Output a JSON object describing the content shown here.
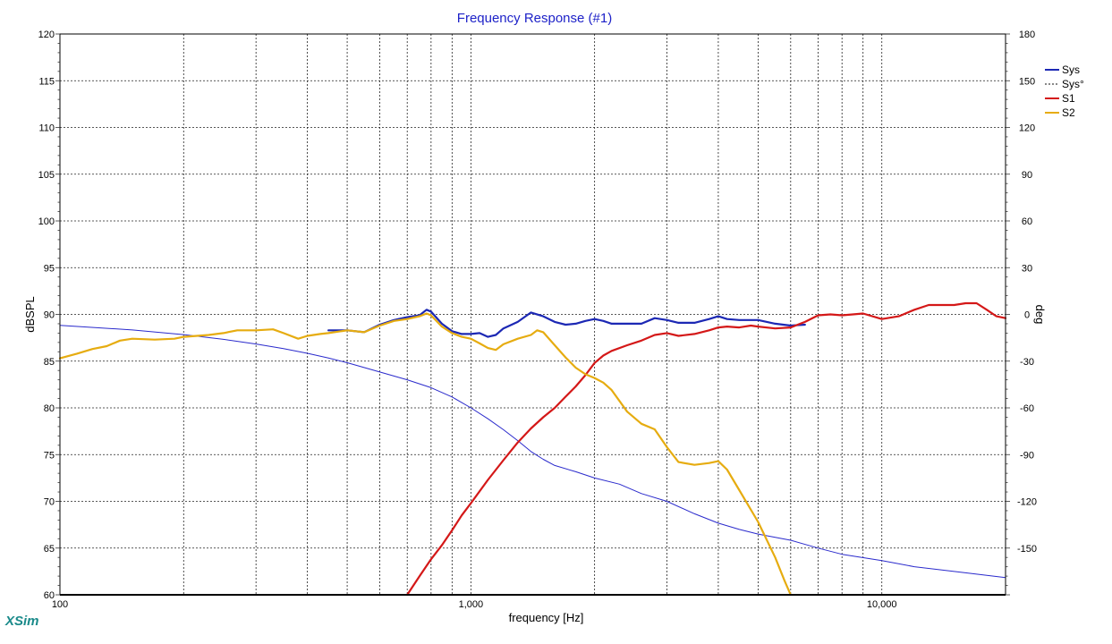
{
  "app": {
    "brand": "XSim"
  },
  "chart_data": {
    "type": "line",
    "title": "Frequency Response (#1)",
    "xlabel": "frequency [Hz]",
    "ylabel": "dBSPL",
    "y2label": "deg",
    "xscale": "log",
    "xlim": [
      100,
      20000
    ],
    "ylim": [
      60,
      120
    ],
    "y2lim": [
      -180,
      180
    ],
    "grid": true,
    "legend_position": "top-right",
    "x_tick_labels": [
      {
        "x": 100,
        "label": "100"
      },
      {
        "x": 1000,
        "label": "1,000"
      },
      {
        "x": 10000,
        "label": "10,000"
      }
    ],
    "y_ticks": [
      60,
      65,
      70,
      75,
      80,
      85,
      90,
      95,
      100,
      105,
      110,
      115,
      120
    ],
    "y2_ticks": [
      -150,
      -120,
      -90,
      -60,
      -30,
      0,
      30,
      60,
      90,
      120,
      150,
      180
    ],
    "series": [
      {
        "name": "Sys",
        "axis": "left",
        "color": "#1c28b4",
        "width": 2.2,
        "x": [
          450,
          500,
          550,
          600,
          650,
          700,
          750,
          780,
          800,
          850,
          900,
          950,
          1000,
          1050,
          1100,
          1150,
          1200,
          1300,
          1400,
          1500,
          1600,
          1700,
          1800,
          1900,
          2000,
          2100,
          2200,
          2400,
          2600,
          2800,
          3000,
          3200,
          3500,
          3800,
          4000,
          4200,
          4500,
          5000,
          5500,
          6000,
          6500
        ],
        "y": [
          88.3,
          88.3,
          88.1,
          88.9,
          89.4,
          89.7,
          89.9,
          90.5,
          90.3,
          89.0,
          88.2,
          87.9,
          87.9,
          88.0,
          87.6,
          87.8,
          88.5,
          89.2,
          90.2,
          89.8,
          89.2,
          88.9,
          89.0,
          89.3,
          89.5,
          89.3,
          89.0,
          89.0,
          89.0,
          89.6,
          89.4,
          89.1,
          89.1,
          89.5,
          89.8,
          89.5,
          89.4,
          89.4,
          89.0,
          88.8,
          88.9
        ]
      },
      {
        "name": "Sys°",
        "axis": "right",
        "color": "#2a2acc",
        "width": 1.0,
        "dashed_legend": true,
        "x": [
          100,
          150,
          200,
          250,
          300,
          350,
          400,
          450,
          500,
          600,
          700,
          800,
          900,
          1000,
          1100,
          1200,
          1300,
          1400,
          1500,
          1600,
          1800,
          2000,
          2300,
          2600,
          3000,
          3500,
          4000,
          4500,
          5000,
          6000,
          7000,
          8000,
          10000,
          12000,
          15000,
          20000
        ],
        "y": [
          -7,
          -10,
          -13,
          -16,
          -19,
          -22,
          -25,
          -28,
          -31,
          -37,
          -42,
          -47,
          -53,
          -60,
          -67,
          -74,
          -81,
          -88,
          -93,
          -97,
          -101,
          -105,
          -109,
          -115,
          -120,
          -128,
          -134,
          -138,
          -141,
          -145,
          -150,
          -154,
          -158,
          -162,
          -165,
          -169
        ]
      },
      {
        "name": "S1",
        "axis": "left",
        "color": "#d41818",
        "width": 2.2,
        "x": [
          700,
          750,
          800,
          850,
          900,
          950,
          1000,
          1100,
          1200,
          1300,
          1400,
          1500,
          1600,
          1700,
          1800,
          1900,
          2000,
          2100,
          2200,
          2400,
          2600,
          2800,
          3000,
          3200,
          3500,
          3800,
          4000,
          4200,
          4500,
          4800,
          5000,
          5500,
          6000,
          6500,
          7000,
          7500,
          8000,
          8500,
          9000,
          10000,
          11000,
          12000,
          13000,
          14000,
          15000,
          16000,
          17000,
          18000,
          19000,
          20000
        ],
        "y": [
          60.0,
          62.0,
          63.8,
          65.3,
          66.9,
          68.5,
          69.8,
          72.3,
          74.4,
          76.3,
          77.8,
          79.0,
          80.0,
          81.2,
          82.3,
          83.5,
          84.8,
          85.6,
          86.1,
          86.7,
          87.2,
          87.8,
          88.0,
          87.7,
          87.9,
          88.3,
          88.6,
          88.7,
          88.6,
          88.8,
          88.7,
          88.5,
          88.6,
          89.2,
          89.9,
          90.0,
          89.9,
          90.0,
          90.1,
          89.5,
          89.8,
          90.5,
          91.0,
          91.0,
          91.0,
          91.2,
          91.2,
          90.5,
          89.8,
          89.6
        ]
      },
      {
        "name": "S2",
        "axis": "left",
        "color": "#e6ac10",
        "width": 2.2,
        "x": [
          100,
          110,
          120,
          130,
          140,
          150,
          170,
          190,
          200,
          230,
          250,
          270,
          300,
          330,
          350,
          380,
          400,
          430,
          450,
          500,
          550,
          600,
          650,
          700,
          750,
          780,
          800,
          850,
          900,
          950,
          1000,
          1050,
          1100,
          1150,
          1200,
          1300,
          1400,
          1450,
          1500,
          1600,
          1700,
          1800,
          1900,
          2000,
          2100,
          2200,
          2400,
          2600,
          2800,
          3000,
          3200,
          3500,
          3800,
          4000,
          4200,
          4500,
          5000,
          5500,
          5800,
          6000
        ],
        "y": [
          85.3,
          85.8,
          86.3,
          86.6,
          87.2,
          87.4,
          87.3,
          87.4,
          87.6,
          87.8,
          88.0,
          88.3,
          88.3,
          88.4,
          88.0,
          87.4,
          87.7,
          87.9,
          88.0,
          88.3,
          88.1,
          88.8,
          89.3,
          89.5,
          89.8,
          90.1,
          89.9,
          88.7,
          88.0,
          87.6,
          87.4,
          86.9,
          86.4,
          86.2,
          86.8,
          87.4,
          87.8,
          88.3,
          88.1,
          86.7,
          85.4,
          84.3,
          83.6,
          83.2,
          82.7,
          81.9,
          79.6,
          78.3,
          77.7,
          75.8,
          74.2,
          73.9,
          74.1,
          74.3,
          73.4,
          71.2,
          67.8,
          64.0,
          61.5,
          60.0
        ]
      }
    ]
  }
}
